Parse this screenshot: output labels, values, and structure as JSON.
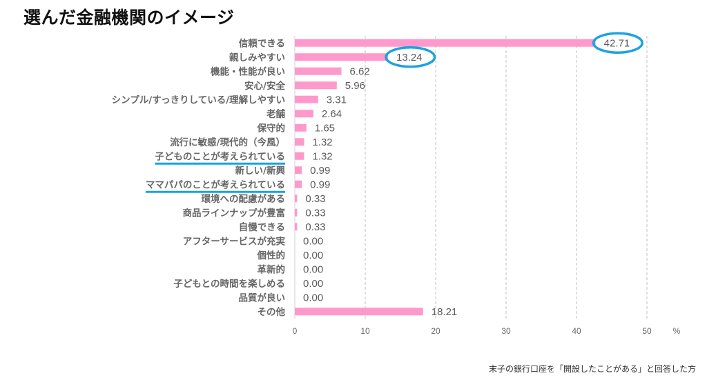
{
  "title": "選んだ金融機関のイメージ",
  "footnote": "末子の銀行口座を「開設したことがある」と回答した方",
  "chart_data": {
    "type": "bar",
    "orientation": "horizontal",
    "categories": [
      "信頼できる",
      "親しみやすい",
      "機能・性能が良い",
      "安心/安全",
      "シンプル/すっきりしている/理解しやすい",
      "老舗",
      "保守的",
      "流行に敏感/現代的（今風）",
      "子どものことが考えられている",
      "新しい/新興",
      "ママパパのことが考えられている",
      "環境への配慮がある",
      "商品ラインナップが豊富",
      "自慢できる",
      "アフターサービスが充実",
      "個性的",
      "革新的",
      "子どもとの時間を楽しめる",
      "品質が良い",
      "その他"
    ],
    "values": [
      42.71,
      13.24,
      6.62,
      5.96,
      3.31,
      2.64,
      1.65,
      1.32,
      1.32,
      0.99,
      0.99,
      0.33,
      0.33,
      0.33,
      0.0,
      0.0,
      0.0,
      0.0,
      0.0,
      18.21
    ],
    "value_labels": [
      "42.71",
      "13.24",
      "6.62",
      "5.96",
      "3.31",
      "2.64",
      "1.65",
      "1.32",
      "1.32",
      "0.99",
      "0.99",
      "0.33",
      "0.33",
      "0.33",
      "0.00",
      "0.00",
      "0.00",
      "0.00",
      "0.00",
      "18.21"
    ],
    "xlim": [
      0,
      50
    ],
    "xticks": [
      "0",
      "10",
      "20",
      "30",
      "40",
      "50"
    ],
    "xunit": "%",
    "grid": "vertical dashed",
    "circled_values": [
      0,
      1
    ],
    "underlined_categories": [
      8,
      10
    ],
    "colors": {
      "bar": "#ff99cc",
      "highlight": "#1aa3e0",
      "grid": "#bfbfbf"
    }
  }
}
